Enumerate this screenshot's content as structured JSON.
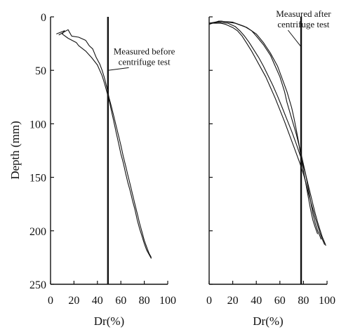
{
  "figure": {
    "ylabel": "Depth (mm)"
  },
  "chart_data": [
    {
      "type": "line",
      "title": "",
      "xlabel": "Dr(%)",
      "ylabel": "Depth (mm)",
      "xlim": [
        0,
        100
      ],
      "ylim": [
        0,
        250
      ],
      "y_inverted": true,
      "x_ticks": [
        0,
        20,
        40,
        60,
        80,
        100
      ],
      "y_ticks": [
        0,
        50,
        100,
        150,
        200,
        250
      ],
      "y_ticks_labeled": true,
      "grid": false,
      "color": "#111111",
      "series": [
        {
          "x": [
            5,
            12,
            10,
            15,
            22,
            24,
            30,
            35,
            40,
            42,
            44,
            46,
            48,
            50,
            52,
            54,
            56,
            58,
            60,
            62,
            64,
            66,
            68,
            70,
            72,
            74,
            76,
            78,
            80,
            82,
            84,
            86
          ],
          "y": [
            16,
            13,
            16,
            20,
            24,
            27,
            32,
            38,
            45,
            50,
            55,
            62,
            70,
            78,
            88,
            98,
            108,
            118,
            128,
            136,
            146,
            155,
            163,
            172,
            180,
            190,
            198,
            205,
            212,
            218,
            222,
            226
          ]
        },
        {
          "x": [
            7,
            15,
            18,
            24,
            30,
            33,
            36,
            39,
            42,
            44,
            46,
            48,
            50,
            52,
            54,
            56,
            58,
            60,
            62,
            64,
            66,
            68,
            70,
            72,
            74,
            76,
            78,
            80,
            82,
            84,
            86
          ],
          "y": [
            17,
            12,
            18,
            19,
            22,
            27,
            30,
            38,
            44,
            50,
            57,
            66,
            76,
            84,
            93,
            102,
            111,
            120,
            130,
            139,
            148,
            157,
            166,
            175,
            184,
            193,
            201,
            209,
            215,
            221,
            225
          ]
        }
      ],
      "reference_line": {
        "x": 49
      },
      "annotation": {
        "lines": [
          "Measured before",
          "centrifuge test"
        ],
        "x": 80,
        "y": 35,
        "target_x": 49,
        "target_y": 50
      }
    },
    {
      "type": "line",
      "title": "",
      "xlabel": "Dr(%)",
      "ylabel": "",
      "xlim": [
        0,
        100
      ],
      "ylim": [
        0,
        250
      ],
      "y_inverted": true,
      "x_ticks": [
        0,
        20,
        40,
        60,
        80,
        100
      ],
      "y_ticks": [
        0,
        50,
        100,
        150,
        200,
        250
      ],
      "y_ticks_labeled": false,
      "grid": false,
      "color": "#111111",
      "series": [
        {
          "x": [
            0,
            10,
            14,
            20,
            24,
            28,
            32,
            36,
            40,
            44,
            48,
            52,
            56,
            60,
            64,
            68,
            72,
            76,
            78,
            80,
            82,
            84,
            86,
            88,
            90,
            92,
            94,
            96,
            98
          ],
          "y": [
            6,
            6,
            7,
            10,
            13,
            18,
            25,
            32,
            40,
            48,
            56,
            66,
            76,
            87,
            98,
            110,
            122,
            134,
            140,
            147,
            155,
            164,
            172,
            180,
            188,
            195,
            202,
            208,
            213
          ]
        },
        {
          "x": [
            0,
            8,
            16,
            22,
            26,
            30,
            34,
            38,
            42,
            46,
            50,
            54,
            58,
            62,
            66,
            70,
            74,
            78,
            80,
            82,
            84,
            86,
            88,
            90,
            92,
            94,
            96,
            98,
            99
          ],
          "y": [
            6,
            5,
            6,
            9,
            13,
            18,
            24,
            31,
            38,
            46,
            55,
            64,
            74,
            85,
            96,
            107,
            119,
            132,
            140,
            148,
            157,
            166,
            175,
            184,
            192,
            199,
            206,
            211,
            214
          ]
        },
        {
          "x": [
            0,
            8,
            20,
            30,
            36,
            40,
            46,
            52,
            56,
            60,
            64,
            66,
            70,
            74,
            78,
            80,
            82,
            84,
            86,
            88,
            90,
            92,
            94,
            95
          ],
          "y": [
            7,
            4,
            5,
            9,
            13,
            18,
            26,
            36,
            46,
            56,
            70,
            80,
            95,
            110,
            128,
            138,
            148,
            160,
            172,
            184,
            193,
            200,
            205,
            208
          ]
        },
        {
          "x": [
            0,
            10,
            22,
            32,
            40,
            46,
            52,
            58,
            62,
            66,
            70,
            72,
            74,
            76,
            78,
            80,
            82,
            84,
            86,
            88,
            90,
            92
          ],
          "y": [
            6,
            4,
            6,
            10,
            16,
            24,
            34,
            46,
            58,
            70,
            85,
            95,
            106,
            118,
            132,
            144,
            156,
            168,
            180,
            190,
            197,
            203
          ]
        }
      ],
      "reference_line": {
        "x": 78
      },
      "annotation": {
        "lines": [
          "Measured after",
          "centrifuge test"
        ],
        "x": 80,
        "y": 0,
        "target_x": 78,
        "target_y": 28
      }
    }
  ]
}
